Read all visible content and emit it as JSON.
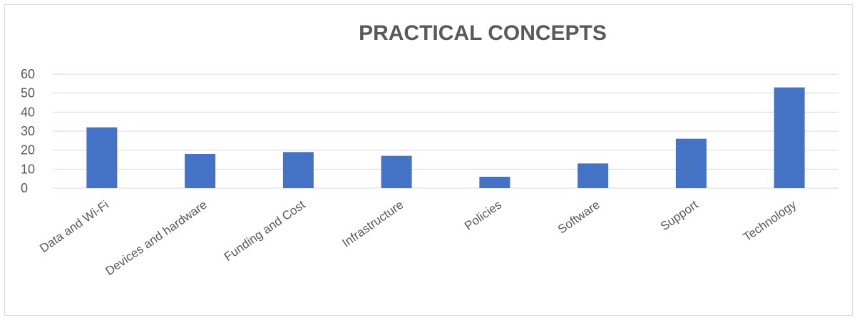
{
  "chart_data": {
    "type": "bar",
    "title": "PRACTICAL CONCEPTS",
    "xlabel": "",
    "ylabel": "",
    "categories": [
      "Data and Wi-Fi",
      "Devices and hardware",
      "Funding and Cost",
      "Infrastructure",
      "Policies",
      "Software",
      "Support",
      "Technology"
    ],
    "values": [
      32,
      18,
      19,
      17,
      6,
      13,
      26,
      53
    ],
    "ylim": [
      0,
      60
    ],
    "yticks": [
      "0",
      "10",
      "20",
      "30",
      "40",
      "50",
      "60"
    ],
    "grid": true,
    "legend": "none",
    "bar_color": "#4472C4",
    "grid_color": "#d9d9d9"
  }
}
